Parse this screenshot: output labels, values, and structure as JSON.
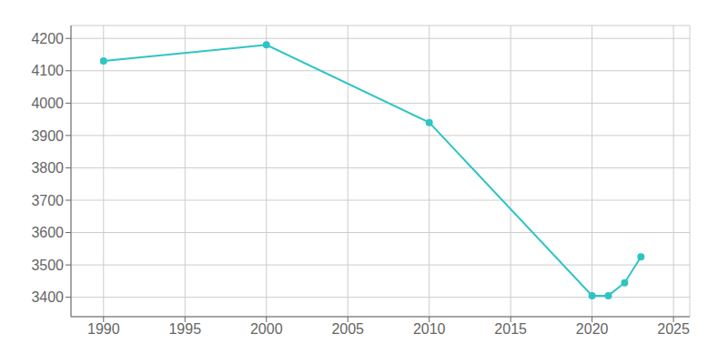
{
  "chart_data": {
    "type": "line",
    "x": [
      1990,
      2000,
      2010,
      2020,
      2021,
      2022,
      2023
    ],
    "series": [
      {
        "values": [
          4130,
          4180,
          3940,
          3405,
          3405,
          3445,
          3525
        ],
        "color": "#2EC4C4",
        "marker": "circle"
      }
    ],
    "xlim": [
      1988,
      2026
    ],
    "ylim": [
      3340,
      4240
    ],
    "xticks": [
      1990,
      1995,
      2000,
      2005,
      2010,
      2015,
      2020,
      2025
    ],
    "yticks": [
      3400,
      3500,
      3600,
      3700,
      3800,
      3900,
      4000,
      4100,
      4200
    ],
    "grid": true
  }
}
